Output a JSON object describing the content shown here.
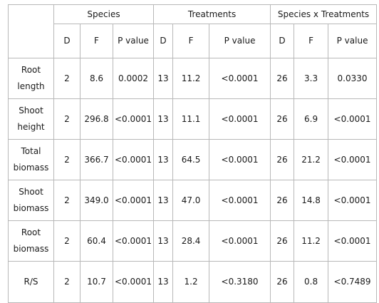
{
  "table": {
    "groups": [
      "Species",
      "Treatments",
      "Species x Treatments"
    ],
    "subheaders": [
      "D",
      "F",
      "P value",
      "D",
      "F",
      "P value",
      "D",
      "F",
      "P value"
    ],
    "rows": [
      {
        "label_line1": "Root",
        "label_line2": "length",
        "cells": [
          "2",
          "8.6",
          "0.0002",
          "13",
          "11.2",
          "<0.0001",
          "26",
          "3.3",
          "0.0330"
        ]
      },
      {
        "label_line1": "Shoot",
        "label_line2": "height",
        "cells": [
          "2",
          "296.8",
          "<0.0001",
          "13",
          "11.1",
          "<0.0001",
          "26",
          "6.9",
          "<0.0001"
        ]
      },
      {
        "label_line1": "Total",
        "label_line2": "biomass",
        "cells": [
          "2",
          "366.7",
          "<0.0001",
          "13",
          "64.5",
          "<0.0001",
          "26",
          "21.2",
          "<0.0001"
        ]
      },
      {
        "label_line1": "Shoot",
        "label_line2": "biomass",
        "cells": [
          "2",
          "349.0",
          "<0.0001",
          "13",
          "47.0",
          "<0.0001",
          "26",
          "14.8",
          "<0.0001"
        ]
      },
      {
        "label_line1": "Root",
        "label_line2": "biomass",
        "cells": [
          "2",
          "60.4",
          "<0.0001",
          "13",
          "28.4",
          "<0.0001",
          "26",
          "11.2",
          "<0.0001"
        ]
      },
      {
        "label_line1": "R/S",
        "label_line2": "",
        "cells": [
          "2",
          "10.7",
          "<0.0001",
          "13",
          "1.2",
          "<0.3180",
          "26",
          "0.8",
          "<0.7489"
        ]
      }
    ]
  }
}
